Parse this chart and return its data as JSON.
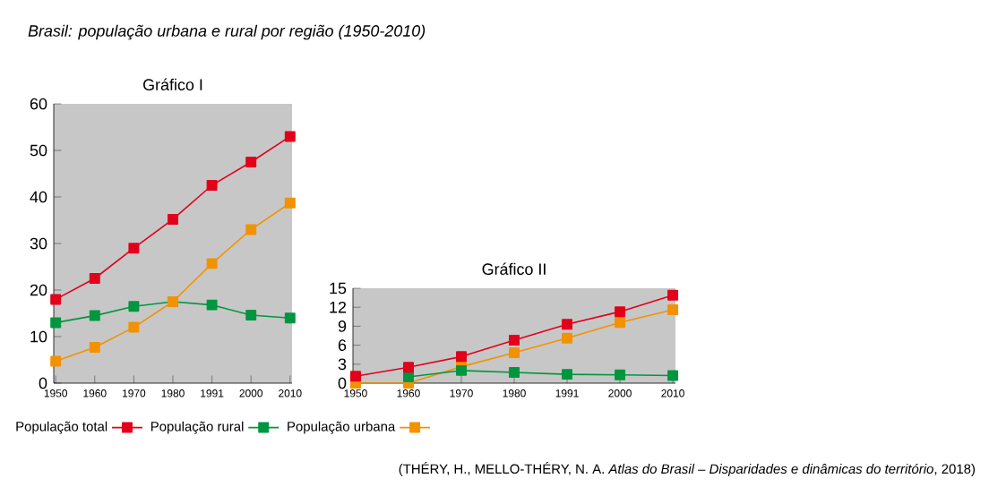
{
  "chart_data": [
    {
      "type": "line",
      "title": "*Brasil: população urbana e rural por região (1950-2010)*",
      "subtitle": "Gráfico I",
      "categories": [
        "1950",
        "1960",
        "1970",
        "1980",
        "1991",
        "2000",
        "2010"
      ],
      "series": [
        {
          "name": "População total",
          "color": "#e2001a",
          "values": [
            18,
            22.5,
            29,
            35.2,
            42.5,
            47.5,
            53
          ]
        },
        {
          "name": "População rural",
          "color": "#00963f",
          "values": [
            13,
            14.5,
            16.5,
            17.5,
            16.8,
            14.6,
            14
          ]
        },
        {
          "name": "População urbana",
          "color": "#f39200",
          "values": [
            4.7,
            7.7,
            12,
            17.5,
            25.7,
            33,
            38.7
          ]
        }
      ],
      "ylim": [
        0,
        60
      ],
      "yticks": [
        0,
        10,
        20,
        30,
        40,
        50,
        60
      ],
      "marker": "square",
      "legend": "bottom",
      "annotations": [
        "(THÉRY, H., MELLO-THÉRY, N. A. *Atlas do Brasil – Disparidades e dinâmicas do território*, 2018)"
      ]
    },
    {
      "type": "line",
      "title": "Gráfico II",
      "categories": [
        "1950",
        "1960",
        "1970",
        "1980",
        "1991",
        "2000",
        "2010"
      ],
      "series": [
        {
          "color": "#f39200",
          "values": [
            0,
            0,
            2.6,
            4.8,
            7.1,
            9.6,
            11.6
          ]
        },
        {
          "color": "#00963f",
          "values": [
            null,
            1,
            2,
            1.7,
            1.4,
            1.3,
            1.2
          ]
        },
        {
          "color": "#e2001a",
          "values": [
            1.1,
            2.5,
            4.2,
            6.8,
            9.3,
            11.3,
            13.9
          ]
        }
      ],
      "ylim": [
        0,
        15
      ],
      "yticks": [
        0,
        3,
        6,
        9,
        12,
        15
      ],
      "marker": "square"
    }
  ]
}
